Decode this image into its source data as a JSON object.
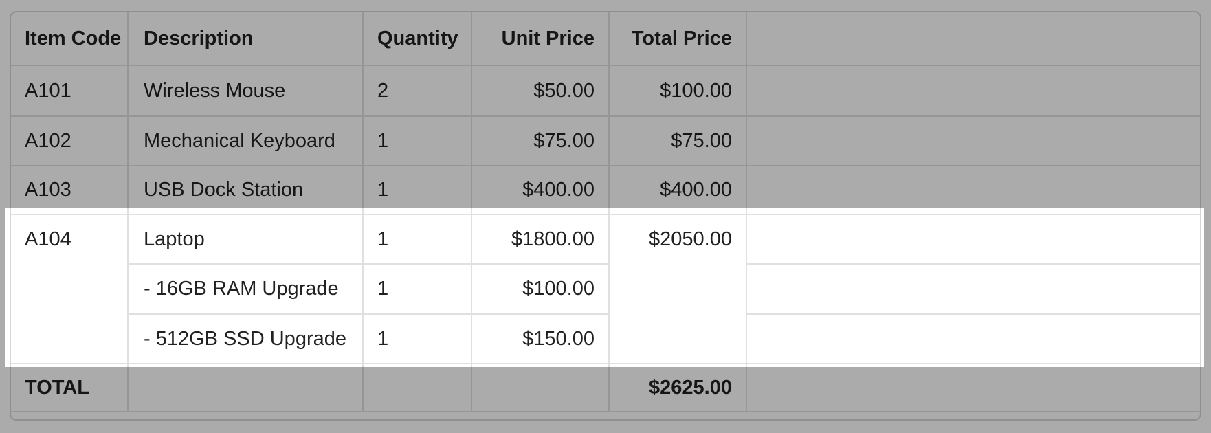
{
  "colors": {
    "page_bg": "#ffffff",
    "text": "#212121",
    "border_inner": "#e0e0e0",
    "border_outer": "#d6d6d6",
    "overlay_dim": "rgba(0, 0, 0, 0.33)"
  },
  "table": {
    "columns": [
      {
        "label": "Item Code"
      },
      {
        "label": "Description"
      },
      {
        "label": "Quantity"
      },
      {
        "label": "Unit Price"
      },
      {
        "label": "Total Price"
      },
      {
        "label": ""
      }
    ],
    "rows": [
      {
        "item_code": "A101",
        "description": "Wireless Mouse",
        "quantity": "2",
        "unit_price": "$50.00",
        "total_price": "$100.00"
      },
      {
        "item_code": "A102",
        "description": "Mechanical Keyboard",
        "quantity": "1",
        "unit_price": "$75.00",
        "total_price": "$75.00"
      },
      {
        "item_code": "A103",
        "description": "USB Dock Station",
        "quantity": "1",
        "unit_price": "$400.00",
        "total_price": "$400.00"
      },
      {
        "item_code": "A104",
        "description": "Laptop",
        "quantity": "1",
        "unit_price": "$1800.00",
        "total_price": "$2050.00"
      },
      {
        "item_code": "",
        "description": "- 16GB RAM Upgrade",
        "quantity": "1",
        "unit_price": "$100.00",
        "total_price": ""
      },
      {
        "item_code": "",
        "description": "- 512GB SSD Upgrade",
        "quantity": "1",
        "unit_price": "$150.00",
        "total_price": ""
      }
    ],
    "total_row": {
      "label": "TOTAL",
      "total_price": "$2625.00"
    },
    "highlighted_group": "A104"
  }
}
